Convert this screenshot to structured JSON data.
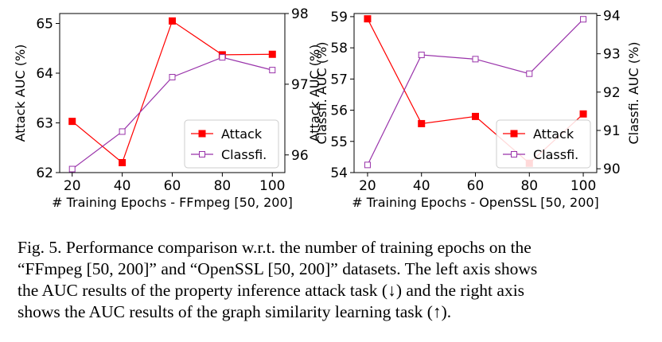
{
  "chart_data": [
    {
      "type": "line",
      "xlabel": "# Training Epochs - FFmpeg [50, 200]",
      "ylabel_left": "Attack AUC (%)",
      "ylabel_right": "Classfi. AUC (%)",
      "x": [
        20,
        40,
        60,
        80,
        100
      ],
      "xlim": [
        15,
        105
      ],
      "ylim_left": [
        62,
        65.2
      ],
      "ylim_right": [
        95.75,
        98
      ],
      "yticks_left": [
        62,
        63,
        64,
        65
      ],
      "yticks_right": [
        96,
        97,
        98
      ],
      "grid": false,
      "legend": "bottom-right",
      "series": [
        {
          "name": "Attack",
          "axis": "left",
          "color": "#ff0000",
          "marker": "filled-square",
          "values": [
            63.03,
            62.2,
            65.05,
            64.37,
            64.38
          ]
        },
        {
          "name": "Classfi.",
          "axis": "right",
          "color": "#9933aa",
          "marker": "open-square",
          "values": [
            95.8,
            96.33,
            97.1,
            97.38,
            97.2
          ]
        }
      ]
    },
    {
      "type": "line",
      "xlabel": "# Training Epochs - OpenSSL [50, 200]",
      "ylabel_left": "Attack AUC (%)",
      "ylabel_right": "Classfi. AUC (%)",
      "x": [
        20,
        40,
        60,
        80,
        100
      ],
      "xlim": [
        15,
        105
      ],
      "ylim_left": [
        54,
        59.1
      ],
      "ylim_right": [
        89.9,
        94.05
      ],
      "yticks_left": [
        54,
        55,
        56,
        57,
        58,
        59
      ],
      "yticks_right": [
        90,
        91,
        92,
        93,
        94
      ],
      "grid": false,
      "legend": "bottom-right",
      "series": [
        {
          "name": "Attack",
          "axis": "left",
          "color": "#ff0000",
          "marker": "filled-square",
          "values": [
            58.93,
            55.57,
            55.8,
            54.3,
            55.88
          ]
        },
        {
          "name": "Classfi.",
          "axis": "right",
          "color": "#9933aa",
          "marker": "open-square",
          "values": [
            90.1,
            92.97,
            92.86,
            92.48,
            93.9
          ]
        }
      ]
    }
  ],
  "caption": {
    "lines": [
      "Fig. 5.  Performance comparison w.r.t. the number of training epochs on the",
      "“FFmpeg [50, 200]” and “OpenSSL [50, 200]” datasets. The left axis shows",
      "the AUC results of the property inference attack task (↓) and the right axis",
      "shows the AUC results of the graph similarity learning task (↑)."
    ]
  }
}
